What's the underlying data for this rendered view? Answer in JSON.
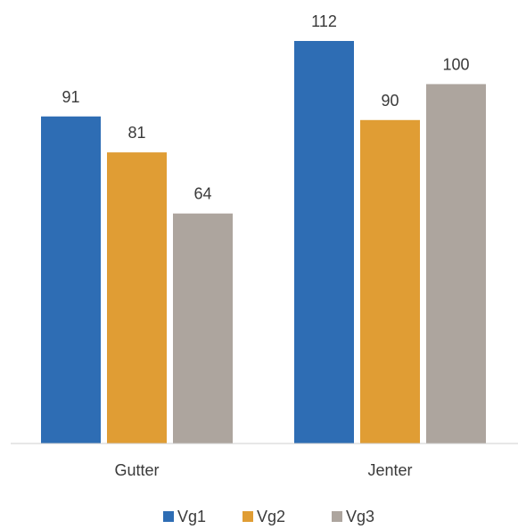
{
  "chart_data": {
    "type": "bar",
    "categories": [
      "Gutter",
      "Jenter"
    ],
    "series": [
      {
        "name": "Vg1",
        "color": "#2e6db4",
        "values": [
          91,
          112
        ]
      },
      {
        "name": "Vg2",
        "color": "#e09d34",
        "values": [
          81,
          90
        ]
      },
      {
        "name": "Vg3",
        "color": "#ada59e",
        "values": [
          64,
          100
        ]
      }
    ],
    "ylim": [
      0,
      120
    ],
    "grid": false,
    "legend_position": "bottom",
    "data_labels": true
  }
}
